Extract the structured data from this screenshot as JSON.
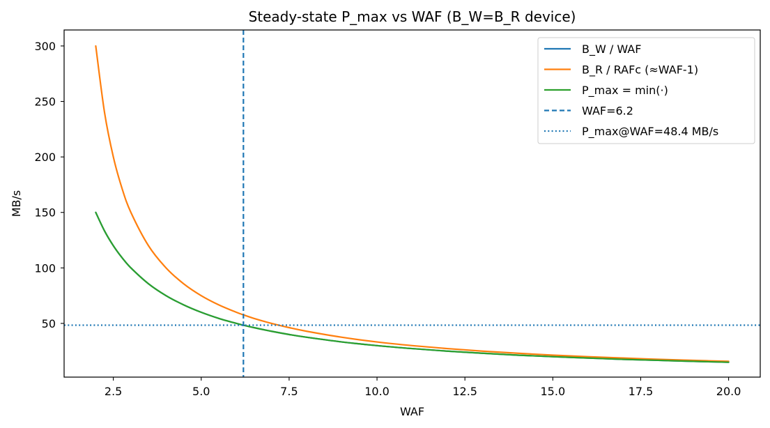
{
  "chart_data": {
    "type": "line",
    "title": "Steady-state P_max vs WAF (B_W=B_R device)",
    "xlabel": "WAF",
    "ylabel": "MB/s",
    "xlim": [
      1.1,
      20.9
    ],
    "ylim": [
      1.6,
      314.4
    ],
    "x_ticks": [
      2.5,
      5.0,
      7.5,
      10.0,
      12.5,
      15.0,
      17.5,
      20.0
    ],
    "x_tick_labels": [
      "2.5",
      "5.0",
      "7.5",
      "10.0",
      "12.5",
      "15.0",
      "17.5",
      "20.0"
    ],
    "y_ticks": [
      50,
      100,
      150,
      200,
      250,
      300
    ],
    "y_tick_labels": [
      "50",
      "100",
      "150",
      "200",
      "250",
      "300"
    ],
    "grid": false,
    "legend_position": "top-right",
    "series": [
      {
        "name": "B_W / WAF",
        "color": "#1f77b4",
        "style": "solid",
        "x": [
          2.0,
          2.25,
          2.5,
          2.75,
          3.0,
          3.5,
          4.0,
          4.5,
          5.0,
          5.5,
          6.0,
          6.2,
          6.5,
          7.0,
          7.5,
          8.0,
          9.0,
          10.0,
          11.0,
          12.0,
          13.0,
          14.0,
          15.0,
          16.0,
          17.0,
          18.0,
          19.0,
          20.0
        ],
        "values": [
          150.0,
          133.3,
          120.0,
          109.1,
          100.0,
          85.7,
          75.0,
          66.7,
          60.0,
          54.5,
          50.0,
          48.4,
          46.2,
          42.9,
          40.0,
          37.5,
          33.3,
          30.0,
          27.3,
          25.0,
          23.1,
          21.4,
          20.0,
          18.8,
          17.6,
          16.7,
          15.8,
          15.0
        ]
      },
      {
        "name": "B_R / RAFc (≈WAF-1)",
        "color": "#ff7f0e",
        "style": "solid",
        "x": [
          2.0,
          2.25,
          2.5,
          2.75,
          3.0,
          3.5,
          4.0,
          4.5,
          5.0,
          5.5,
          6.0,
          6.2,
          6.5,
          7.0,
          7.5,
          8.0,
          9.0,
          10.0,
          11.0,
          12.0,
          13.0,
          14.0,
          15.0,
          16.0,
          17.0,
          18.0,
          19.0,
          20.0
        ],
        "values": [
          300.0,
          240.0,
          200.0,
          171.4,
          150.0,
          120.0,
          100.0,
          85.7,
          75.0,
          66.7,
          60.0,
          57.7,
          54.5,
          50.0,
          46.2,
          42.9,
          37.5,
          33.3,
          30.0,
          27.3,
          25.0,
          23.1,
          21.4,
          20.0,
          18.8,
          17.6,
          16.7,
          15.8
        ]
      },
      {
        "name": "P_max = min(·)",
        "color": "#2ca02c",
        "style": "solid",
        "x": [
          2.0,
          2.25,
          2.5,
          2.75,
          3.0,
          3.5,
          4.0,
          4.5,
          5.0,
          5.5,
          6.0,
          6.2,
          6.5,
          7.0,
          7.5,
          8.0,
          9.0,
          10.0,
          11.0,
          12.0,
          13.0,
          14.0,
          15.0,
          16.0,
          17.0,
          18.0,
          19.0,
          20.0
        ],
        "values": [
          150.0,
          133.3,
          120.0,
          109.1,
          100.0,
          85.7,
          75.0,
          66.7,
          60.0,
          54.5,
          50.0,
          48.4,
          46.2,
          42.9,
          40.0,
          37.5,
          33.3,
          30.0,
          27.3,
          25.0,
          23.1,
          21.4,
          20.0,
          18.8,
          17.6,
          16.7,
          15.8,
          15.0
        ]
      },
      {
        "name": "WAF=6.2",
        "color": "#1f77b4",
        "style": "dashed",
        "orientation": "vertical",
        "value": 6.2
      },
      {
        "name": "P_max@WAF=48.4 MB/s",
        "color": "#1f77b4",
        "style": "dotted",
        "orientation": "horizontal",
        "value": 48.4
      }
    ]
  }
}
